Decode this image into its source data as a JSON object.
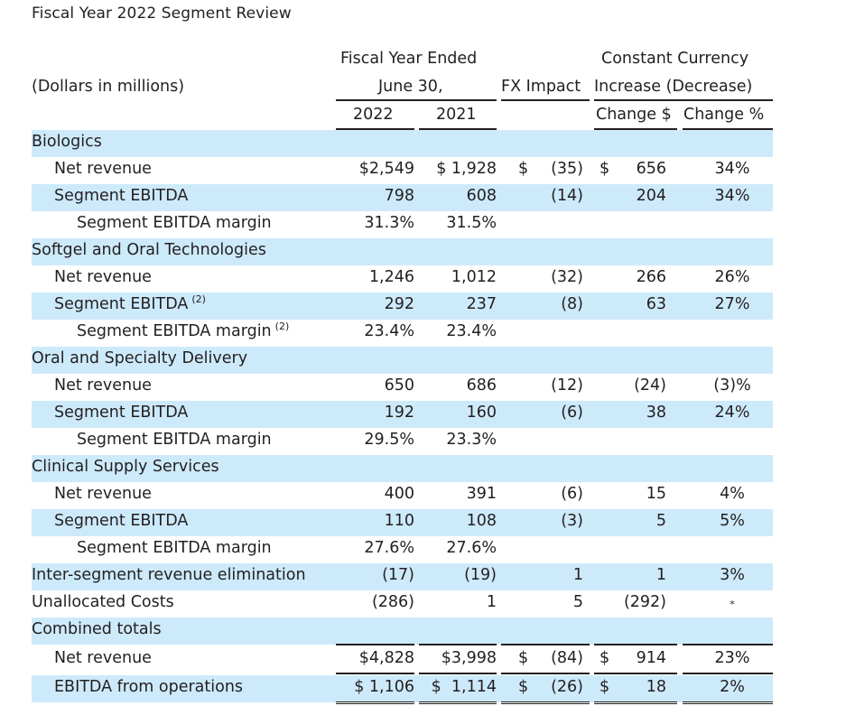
{
  "title": "Fiscal Year 2022 Segment Review",
  "header": {
    "units_label": "(Dollars in millions)",
    "fy_group_line1": "Fiscal Year Ended",
    "fy_group_line2": "June 30,",
    "year_2022": "2022",
    "year_2021": "2021",
    "fx_impact": "FX Impact",
    "cc_line1": "Constant Currency",
    "cc_line2": "Increase (Decrease)",
    "change_dollar": "Change $",
    "change_pct": "Change %"
  },
  "rows": [
    {
      "label": "Biologics",
      "indent": 0,
      "type": "section"
    },
    {
      "label": "Net revenue",
      "indent": 1,
      "v2022": "$2,549",
      "v2021": "$ 1,928",
      "fx_sym": "$",
      "fx": "(35)",
      "chg_sym": "$",
      "chg": "656",
      "pct": "34%"
    },
    {
      "label": "Segment EBITDA",
      "indent": 1,
      "v2022": "798",
      "v2021": "608",
      "fx": "(14)",
      "chg": "204",
      "pct": "34%"
    },
    {
      "label": "Segment EBITDA margin",
      "indent": 2,
      "v2022": "31.3%",
      "v2021": "31.5%"
    },
    {
      "label": "Softgel and Oral Technologies",
      "indent": 0,
      "type": "section"
    },
    {
      "label": "Net revenue",
      "indent": 1,
      "v2022": "1,246",
      "v2021": "1,012",
      "fx": "(32)",
      "chg": "266",
      "pct": "26%"
    },
    {
      "label": "Segment EBITDA",
      "footnote": "(2)",
      "indent": 1,
      "v2022": "292",
      "v2021": "237",
      "fx": "(8)",
      "chg": "63",
      "pct": "27%"
    },
    {
      "label": "Segment EBITDA margin",
      "footnote": "(2)",
      "indent": 2,
      "v2022": "23.4%",
      "v2021": "23.4%"
    },
    {
      "label": "Oral and Specialty Delivery",
      "indent": 0,
      "type": "section"
    },
    {
      "label": "Net revenue",
      "indent": 1,
      "v2022": "650",
      "v2021": "686",
      "fx": "(12)",
      "chg": "(24)",
      "pct": "(3)%"
    },
    {
      "label": "Segment EBITDA",
      "indent": 1,
      "v2022": "192",
      "v2021": "160",
      "fx": "(6)",
      "chg": "38",
      "pct": "24%"
    },
    {
      "label": "Segment EBITDA margin",
      "indent": 2,
      "v2022": "29.5%",
      "v2021": "23.3%"
    },
    {
      "label": "Clinical Supply Services",
      "indent": 0,
      "type": "section"
    },
    {
      "label": "Net revenue",
      "indent": 1,
      "v2022": "400",
      "v2021": "391",
      "fx": "(6)",
      "chg": "15",
      "pct": "4%"
    },
    {
      "label": "Segment EBITDA",
      "indent": 1,
      "v2022": "110",
      "v2021": "108",
      "fx": "(3)",
      "chg": "5",
      "pct": "5%"
    },
    {
      "label": "Segment EBITDA margin",
      "indent": 2,
      "v2022": "27.6%",
      "v2021": "27.6%"
    },
    {
      "label": "Inter-segment revenue elimination",
      "indent": 0,
      "v2022": "(17)",
      "v2021": "(19)",
      "fx": "1",
      "chg": "1",
      "pct": "3%"
    },
    {
      "label": "Unallocated Costs",
      "indent": 0,
      "v2022": "(286)",
      "v2021": "1",
      "fx": "5",
      "chg": "(292)",
      "pct": "*"
    },
    {
      "label": "Combined totals",
      "indent": 0,
      "type": "section"
    },
    {
      "label": "Net revenue",
      "indent": 1,
      "v2022": "$4,828",
      "v2021": "$3,998",
      "fx_sym": "$",
      "fx": "(84)",
      "chg_sym": "$",
      "chg": "914",
      "pct": "23%"
    },
    {
      "label": "EBITDA from operations",
      "indent": 1,
      "v2022": "$ 1,106",
      "v2021": "$  1,114",
      "fx_sym": "$",
      "fx": "(26)",
      "chg_sym": "$",
      "chg": "18",
      "pct": "2%"
    }
  ],
  "colors": {
    "row_shade": "#cdeafb",
    "text": "#231f20"
  }
}
